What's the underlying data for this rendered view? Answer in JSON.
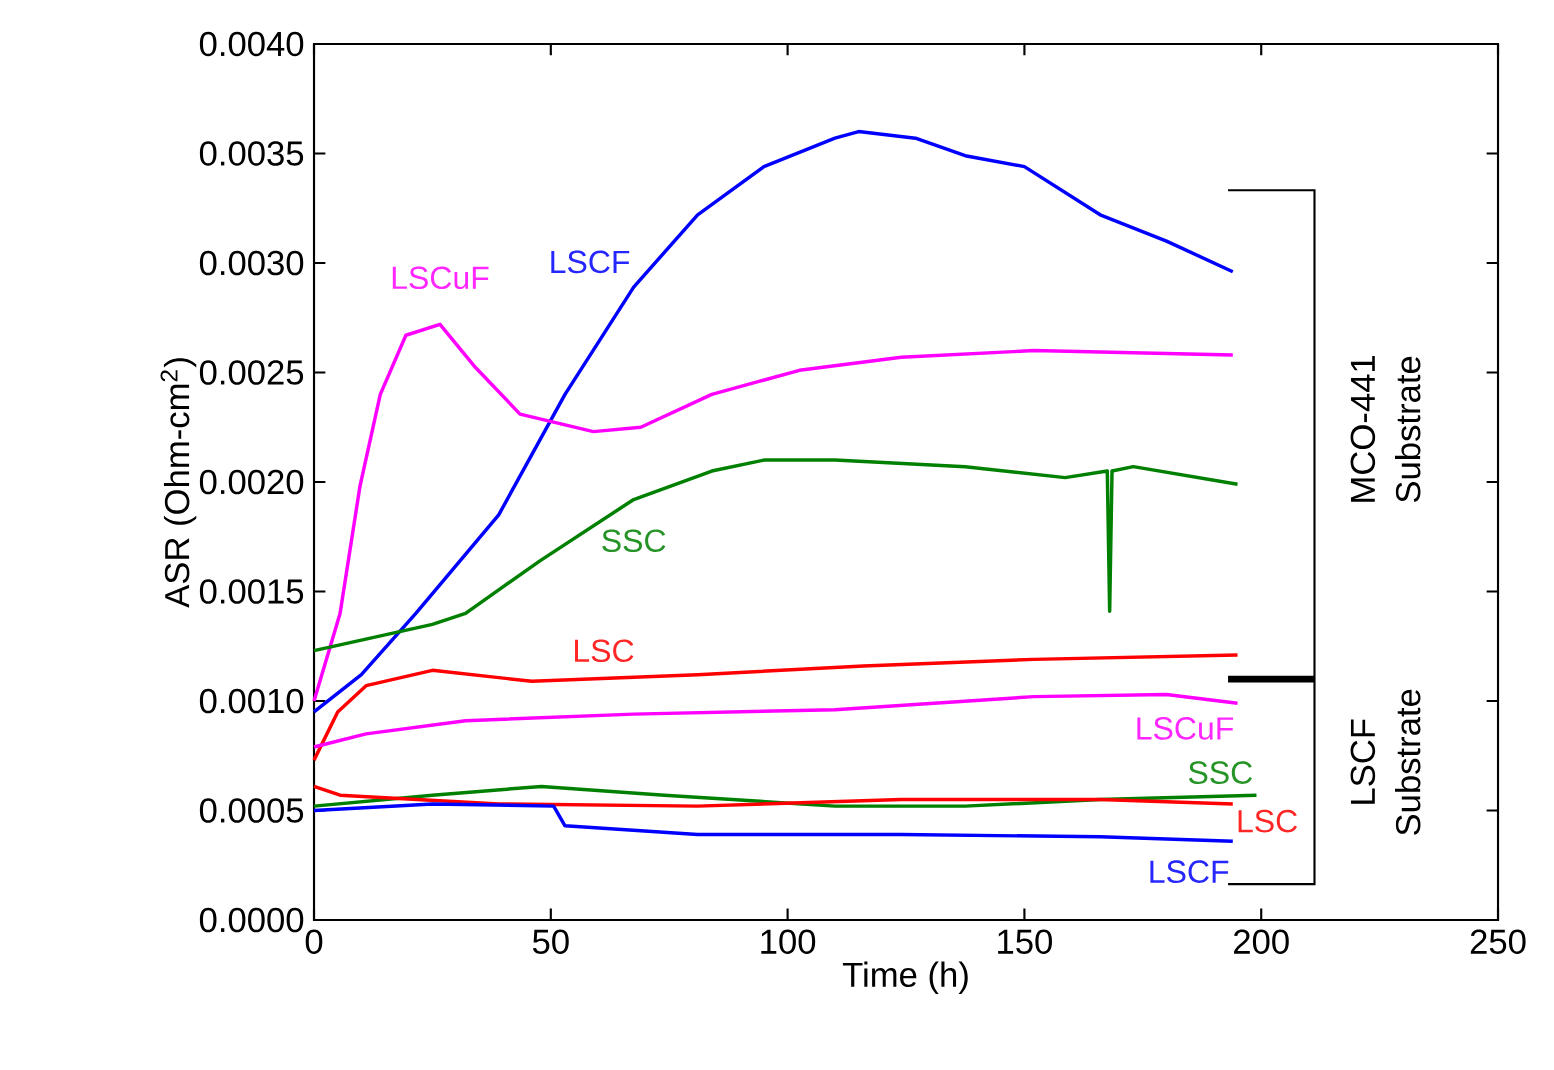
{
  "chart_data": {
    "type": "line",
    "xlabel": "Time (h)",
    "ylabel": "ASR (Ohm-cm$^{2}$)",
    "marker": "none",
    "line_style": "solid",
    "grid": false,
    "xlim": [
      0,
      250
    ],
    "xticks": [
      0,
      50,
      100,
      150,
      200,
      250
    ],
    "ylim": [
      0,
      0.004
    ],
    "yticks": [
      {
        "value": 0,
        "label": "0.0000"
      },
      {
        "value": 0.0005,
        "label": "0.0005"
      },
      {
        "value": 0.001,
        "label": "0.0010"
      },
      {
        "value": 0.0015,
        "label": "0.0015"
      },
      {
        "value": 0.002,
        "label": "0.0020"
      },
      {
        "value": 0.0025,
        "label": "0.0025"
      },
      {
        "value": 0.003,
        "label": "0.0030"
      },
      {
        "value": 0.0035,
        "label": "0.0035"
      },
      {
        "value": 0.004,
        "label": "0.0040"
      }
    ],
    "series": [
      {
        "name": "LSCF",
        "color": "#0000ff",
        "x": [
          0,
          10,
          21.5,
          39,
          53,
          67.5,
          81,
          95,
          110,
          115,
          127,
          137.5,
          150,
          166,
          180,
          194
        ],
        "values": [
          0.00095,
          0.00112,
          0.0014,
          0.00185,
          0.0024,
          0.00289,
          0.00322,
          0.00344,
          0.00357,
          0.0036,
          0.00357,
          0.00349,
          0.00344,
          0.00322,
          0.0031,
          0.00296
        ]
      },
      {
        "name": "LSCuF",
        "color": "#ff00ff",
        "x": [
          0,
          5.5,
          9.7,
          14,
          19.4,
          26.6,
          33.8,
          43.5,
          59,
          69,
          84,
          102.5,
          124,
          152,
          194
        ],
        "values": [
          0.001,
          0.0014,
          0.00198,
          0.0024,
          0.00267,
          0.00272,
          0.00253,
          0.00231,
          0.00223,
          0.00225,
          0.0024,
          0.00251,
          0.00257,
          0.0026,
          0.00258
        ]
      },
      {
        "name": "SSC",
        "color": "#008000",
        "x": [
          0,
          25,
          32,
          47.7,
          67.5,
          84,
          95,
          110,
          137.5,
          158.6,
          167.5,
          168,
          168.5,
          173,
          195
        ],
        "values": [
          0.00123,
          0.00135,
          0.0014,
          0.00164,
          0.00192,
          0.00205,
          0.0021,
          0.0021,
          0.00207,
          0.00202,
          0.00205,
          0.00141,
          0.00205,
          0.00207,
          0.00199
        ]
      },
      {
        "name": "LSC",
        "color": "#ff0000",
        "x": [
          0,
          5,
          11,
          25,
          46,
          81,
          116,
          152,
          195
        ],
        "values": [
          0.00073,
          0.00095,
          0.00107,
          0.00114,
          0.00109,
          0.00112,
          0.00116,
          0.00119,
          0.00121
        ]
      },
      {
        "name": "LSCuF",
        "color": "#ff00ff",
        "x": [
          0,
          11,
          32,
          67.5,
          110,
          152,
          180,
          195
        ],
        "values": [
          0.00079,
          0.00085,
          0.00091,
          0.00094,
          0.00096,
          0.00102,
          0.00103,
          0.00099
        ]
      },
      {
        "name": "SSC",
        "color": "#008000",
        "x": [
          0,
          25,
          48,
          74,
          110,
          137.5,
          166,
          199
        ],
        "values": [
          0.00052,
          0.00057,
          0.00061,
          0.00057,
          0.00052,
          0.00052,
          0.00055,
          0.00057
        ]
      },
      {
        "name": "LSC",
        "color": "#ff0000",
        "x": [
          0,
          5.5,
          39,
          81,
          124,
          166,
          194
        ],
        "values": [
          0.00061,
          0.00057,
          0.00053,
          0.00052,
          0.00055,
          0.00055,
          0.00053
        ]
      },
      {
        "name": "LSCF",
        "color": "#0000ff",
        "x": [
          0,
          25,
          50.6,
          53,
          81,
          124,
          166,
          194
        ],
        "values": [
          0.0005,
          0.00053,
          0.00052,
          0.00043,
          0.00039,
          0.00039,
          0.00038,
          0.00036
        ]
      }
    ],
    "annotations": [
      "MCO-441 Substrate",
      "LSCF Substrate"
    ]
  }
}
